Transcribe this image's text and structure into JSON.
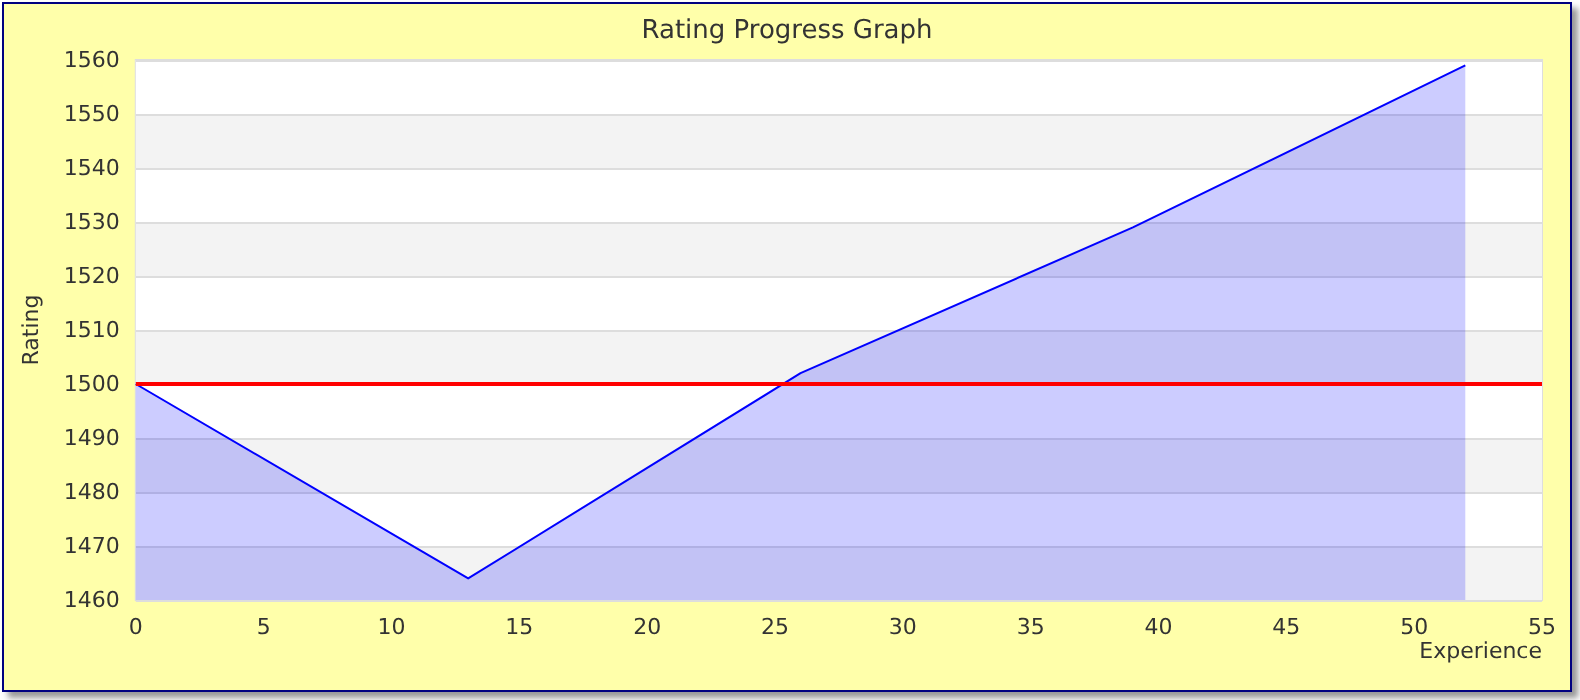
{
  "chart_data": {
    "type": "area",
    "title": "Rating Progress Graph",
    "xlabel": "Experience",
    "ylabel": "Rating",
    "x": [
      0,
      13,
      26,
      39,
      52
    ],
    "series": [
      {
        "color": "#0000ff",
        "values": [
          1500,
          1464,
          1502,
          1529,
          1559
        ]
      }
    ],
    "xlim": [
      0,
      55
    ],
    "xticks": [
      0,
      5,
      10,
      15,
      20,
      25,
      30,
      35,
      40,
      45,
      50,
      55
    ],
    "ylim": [
      1460,
      1560
    ],
    "yticks": [
      1460,
      1470,
      1480,
      1490,
      1500,
      1510,
      1520,
      1530,
      1540,
      1550,
      1560
    ],
    "ref_lines": [
      {
        "axis": "y",
        "value": 1500,
        "color": "#ff0000"
      }
    ],
    "grid": "y",
    "marker": "none",
    "line_style": "solid"
  }
}
